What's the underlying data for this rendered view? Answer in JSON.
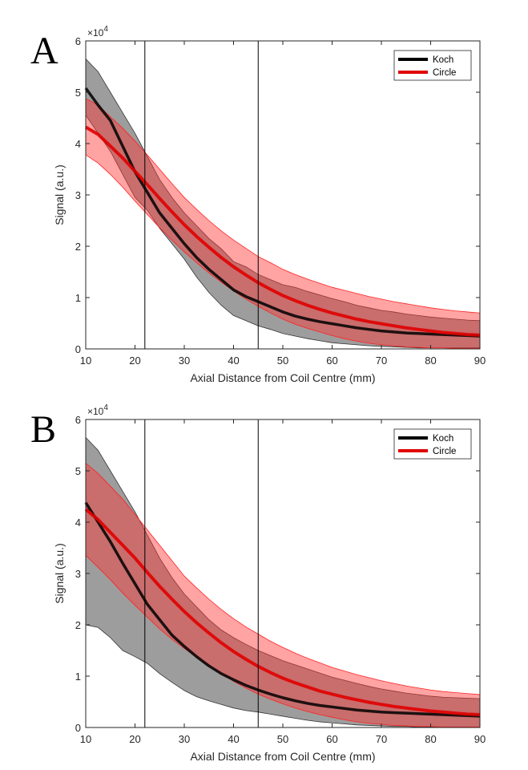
{
  "figure": {
    "panel_labels": [
      "A",
      "B"
    ]
  },
  "chart_data": [
    {
      "panel": "A",
      "type": "area",
      "title": "",
      "xlabel": "Axial Distance from Coil Centre (mm)",
      "ylabel": "Signal (a.u.)",
      "y_multiplier": "×10",
      "y_multiplier_exp": "4",
      "xlim": [
        10,
        90
      ],
      "ylim": [
        0,
        6
      ],
      "xticks": [
        "10",
        "20",
        "30",
        "40",
        "50",
        "60",
        "70",
        "80",
        "90"
      ],
      "yticks": [
        "0",
        "1",
        "2",
        "3",
        "4",
        "5",
        "6"
      ],
      "vlines": [
        22,
        45
      ],
      "legend": {
        "position": "top-right",
        "entries": [
          "Koch",
          "Circle"
        ]
      },
      "colors": {
        "Koch": "#000000",
        "Circle": "#e00000",
        "Koch_band": "#4d4d4d",
        "Circle_band": "#ff3333"
      },
      "x": [
        10,
        12.5,
        15,
        17.5,
        20,
        22.5,
        25,
        27.5,
        30,
        32.5,
        35,
        37.5,
        40,
        42.5,
        45,
        47.5,
        50,
        52.5,
        55,
        57.5,
        60,
        62.5,
        65,
        67.5,
        70,
        72.5,
        75,
        77.5,
        80,
        82.5,
        85,
        87.5,
        90
      ],
      "series": [
        {
          "name": "Koch",
          "values": [
            5.08,
            4.75,
            4.45,
            3.95,
            3.45,
            3.05,
            2.65,
            2.35,
            2.05,
            1.78,
            1.55,
            1.35,
            1.15,
            1.02,
            0.92,
            0.82,
            0.72,
            0.64,
            0.58,
            0.53,
            0.49,
            0.45,
            0.41,
            0.38,
            0.35,
            0.33,
            0.31,
            0.3,
            0.29,
            0.28,
            0.27,
            0.26,
            0.25
          ],
          "upper": [
            5.65,
            5.4,
            5.0,
            4.6,
            4.2,
            3.75,
            3.3,
            2.95,
            2.65,
            2.4,
            2.15,
            1.95,
            1.7,
            1.6,
            1.45,
            1.35,
            1.25,
            1.2,
            1.12,
            1.05,
            0.98,
            0.92,
            0.85,
            0.8,
            0.75,
            0.72,
            0.68,
            0.65,
            0.62,
            0.6,
            0.58,
            0.56,
            0.55
          ],
          "lower": [
            4.55,
            4.2,
            3.85,
            3.4,
            2.95,
            2.7,
            2.35,
            2.05,
            1.75,
            1.4,
            1.1,
            0.85,
            0.65,
            0.55,
            0.45,
            0.38,
            0.3,
            0.25,
            0.2,
            0.16,
            0.12,
            0.1,
            0.08,
            0.06,
            0.05,
            0.04,
            0.03,
            0.02,
            0.02,
            0.02,
            0.02,
            0.02,
            0.02
          ]
        },
        {
          "name": "Circle",
          "values": [
            4.32,
            4.18,
            3.95,
            3.72,
            3.46,
            3.2,
            2.93,
            2.67,
            2.42,
            2.19,
            1.98,
            1.78,
            1.6,
            1.44,
            1.29,
            1.16,
            1.04,
            0.94,
            0.85,
            0.77,
            0.7,
            0.64,
            0.58,
            0.53,
            0.49,
            0.45,
            0.41,
            0.38,
            0.35,
            0.32,
            0.3,
            0.28,
            0.27
          ],
          "upper": [
            4.88,
            4.75,
            4.52,
            4.3,
            4.05,
            3.78,
            3.5,
            3.22,
            2.95,
            2.72,
            2.5,
            2.3,
            2.12,
            1.96,
            1.8,
            1.68,
            1.55,
            1.45,
            1.36,
            1.28,
            1.2,
            1.14,
            1.08,
            1.02,
            0.97,
            0.92,
            0.88,
            0.84,
            0.8,
            0.77,
            0.74,
            0.72,
            0.7
          ],
          "lower": [
            3.78,
            3.62,
            3.4,
            3.15,
            2.88,
            2.62,
            2.36,
            2.12,
            1.89,
            1.68,
            1.48,
            1.3,
            1.13,
            0.97,
            0.83,
            0.7,
            0.58,
            0.48,
            0.4,
            0.33,
            0.26,
            0.2,
            0.15,
            0.11,
            0.08,
            0.06,
            0.04,
            0.03,
            0.02,
            0.02,
            0.01,
            0.01,
            0.01
          ]
        }
      ]
    },
    {
      "panel": "B",
      "type": "area",
      "title": "",
      "xlabel": "Axial Distance from Coil Centre (mm)",
      "ylabel": "Signal (a.u.)",
      "y_multiplier": "×10",
      "y_multiplier_exp": "4",
      "xlim": [
        10,
        90
      ],
      "ylim": [
        0,
        6
      ],
      "xticks": [
        "10",
        "20",
        "30",
        "40",
        "50",
        "60",
        "70",
        "80",
        "90"
      ],
      "yticks": [
        "0",
        "1",
        "2",
        "3",
        "4",
        "5",
        "6"
      ],
      "vlines": [
        22,
        45
      ],
      "legend": {
        "position": "top-right",
        "entries": [
          "Koch",
          "Circle"
        ]
      },
      "colors": {
        "Koch": "#000000",
        "Circle": "#e00000",
        "Koch_band": "#4d4d4d",
        "Circle_band": "#ff3333"
      },
      "x": [
        10,
        12.5,
        15,
        17.5,
        20,
        22.5,
        25,
        27.5,
        30,
        32.5,
        35,
        37.5,
        40,
        42.5,
        45,
        47.5,
        50,
        52.5,
        55,
        57.5,
        60,
        62.5,
        65,
        67.5,
        70,
        72.5,
        75,
        77.5,
        80,
        82.5,
        85,
        87.5,
        90
      ],
      "series": [
        {
          "name": "Koch",
          "values": [
            4.38,
            4.0,
            3.62,
            3.2,
            2.8,
            2.4,
            2.1,
            1.8,
            1.58,
            1.38,
            1.2,
            1.05,
            0.93,
            0.82,
            0.73,
            0.65,
            0.58,
            0.52,
            0.47,
            0.43,
            0.4,
            0.37,
            0.34,
            0.32,
            0.3,
            0.29,
            0.28,
            0.27,
            0.26,
            0.25,
            0.24,
            0.23,
            0.22
          ],
          "upper": [
            5.65,
            5.4,
            5.0,
            4.6,
            4.2,
            3.75,
            3.3,
            2.92,
            2.6,
            2.35,
            2.1,
            1.9,
            1.75,
            1.62,
            1.5,
            1.4,
            1.3,
            1.22,
            1.14,
            1.06,
            0.98,
            0.92,
            0.86,
            0.8,
            0.75,
            0.71,
            0.67,
            0.64,
            0.61,
            0.59,
            0.58,
            0.57,
            0.56
          ],
          "lower": [
            2.0,
            1.95,
            1.75,
            1.5,
            1.38,
            1.25,
            1.05,
            0.88,
            0.72,
            0.6,
            0.52,
            0.45,
            0.38,
            0.33,
            0.3,
            0.26,
            0.22,
            0.18,
            0.14,
            0.11,
            0.09,
            0.07,
            0.05,
            0.04,
            0.03,
            0.02,
            0.02,
            0.01,
            0.01,
            0.01,
            0.01,
            0.01,
            0.01
          ]
        },
        {
          "name": "Circle",
          "values": [
            4.25,
            4.05,
            3.8,
            3.55,
            3.3,
            3.02,
            2.75,
            2.5,
            2.26,
            2.04,
            1.84,
            1.65,
            1.48,
            1.33,
            1.19,
            1.07,
            0.96,
            0.87,
            0.79,
            0.71,
            0.65,
            0.59,
            0.54,
            0.49,
            0.45,
            0.41,
            0.38,
            0.35,
            0.32,
            0.3,
            0.28,
            0.26,
            0.25
          ],
          "upper": [
            5.15,
            4.95,
            4.7,
            4.45,
            4.15,
            3.85,
            3.55,
            3.25,
            2.95,
            2.72,
            2.5,
            2.3,
            2.12,
            1.96,
            1.82,
            1.68,
            1.56,
            1.45,
            1.35,
            1.26,
            1.17,
            1.1,
            1.03,
            0.97,
            0.91,
            0.86,
            0.81,
            0.77,
            0.73,
            0.7,
            0.68,
            0.66,
            0.64
          ],
          "lower": [
            3.35,
            3.12,
            2.88,
            2.62,
            2.38,
            2.15,
            1.92,
            1.72,
            1.54,
            1.37,
            1.2,
            1.05,
            0.9,
            0.77,
            0.65,
            0.55,
            0.46,
            0.38,
            0.31,
            0.25,
            0.2,
            0.15,
            0.11,
            0.08,
            0.06,
            0.04,
            0.03,
            0.02,
            0.02,
            0.01,
            0.01,
            0.01,
            0.01
          ]
        }
      ]
    }
  ]
}
